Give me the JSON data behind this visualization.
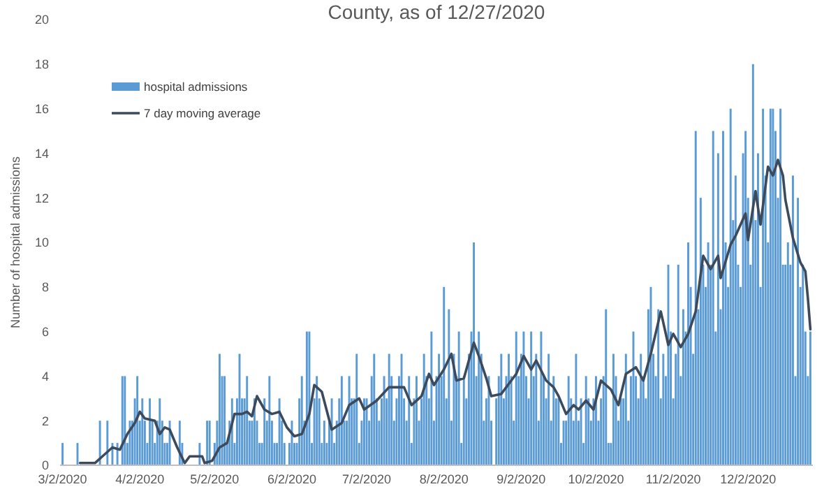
{
  "chart_data": {
    "type": "bar",
    "title": "County, as of 12/27/2020",
    "ylabel": "Number of hospital admissions",
    "xlim": [
      "2020-03-01",
      "2020-12-28"
    ],
    "xticks": [
      {
        "value": "2020-03-02",
        "label": "3/2/2020"
      },
      {
        "value": "2020-04-02",
        "label": "4/2/2020"
      },
      {
        "value": "2020-05-02",
        "label": "5/2/2020"
      },
      {
        "value": "2020-06-02",
        "label": "6/2/2020"
      },
      {
        "value": "2020-07-02",
        "label": "7/2/2020"
      },
      {
        "value": "2020-08-02",
        "label": "8/2/2020"
      },
      {
        "value": "2020-09-02",
        "label": "9/2/2020"
      },
      {
        "value": "2020-10-02",
        "label": "10/2/2020"
      },
      {
        "value": "2020-11-02",
        "label": "11/2/2020"
      },
      {
        "value": "2020-12-02",
        "label": "12/2/2020"
      }
    ],
    "ylim": [
      0,
      20
    ],
    "yticks": [
      0,
      2,
      4,
      6,
      8,
      10,
      12,
      14,
      16,
      18,
      20
    ],
    "grid": false,
    "legend": "top left",
    "x": [
      "2020-03-02",
      "2020-03-03",
      "2020-03-04",
      "2020-03-05",
      "2020-03-06",
      "2020-03-07",
      "2020-03-08",
      "2020-03-09",
      "2020-03-10",
      "2020-03-11",
      "2020-03-12",
      "2020-03-13",
      "2020-03-14",
      "2020-03-15",
      "2020-03-16",
      "2020-03-17",
      "2020-03-18",
      "2020-03-19",
      "2020-03-20",
      "2020-03-21",
      "2020-03-22",
      "2020-03-23",
      "2020-03-24",
      "2020-03-25",
      "2020-03-26",
      "2020-03-27",
      "2020-03-28",
      "2020-03-29",
      "2020-03-30",
      "2020-03-31",
      "2020-04-01",
      "2020-04-02",
      "2020-04-03",
      "2020-04-04",
      "2020-04-05",
      "2020-04-06",
      "2020-04-07",
      "2020-04-08",
      "2020-04-09",
      "2020-04-10",
      "2020-04-11",
      "2020-04-12",
      "2020-04-13",
      "2020-04-14",
      "2020-04-15",
      "2020-04-16",
      "2020-04-17",
      "2020-04-18",
      "2020-04-19",
      "2020-04-20",
      "2020-04-21",
      "2020-04-22",
      "2020-04-23",
      "2020-04-24",
      "2020-04-25",
      "2020-04-26",
      "2020-04-27",
      "2020-04-28",
      "2020-04-29",
      "2020-04-30",
      "2020-05-01",
      "2020-05-02",
      "2020-05-03",
      "2020-05-04",
      "2020-05-05",
      "2020-05-06",
      "2020-05-07",
      "2020-05-08",
      "2020-05-09",
      "2020-05-10",
      "2020-05-11",
      "2020-05-12",
      "2020-05-13",
      "2020-05-14",
      "2020-05-15",
      "2020-05-16",
      "2020-05-17",
      "2020-05-18",
      "2020-05-19",
      "2020-05-20",
      "2020-05-21",
      "2020-05-22",
      "2020-05-23",
      "2020-05-24",
      "2020-05-25",
      "2020-05-26",
      "2020-05-27",
      "2020-05-28",
      "2020-05-29",
      "2020-05-30",
      "2020-05-31",
      "2020-06-01",
      "2020-06-02",
      "2020-06-03",
      "2020-06-04",
      "2020-06-05",
      "2020-06-06",
      "2020-06-07",
      "2020-06-08",
      "2020-06-09",
      "2020-06-10",
      "2020-06-11",
      "2020-06-12",
      "2020-06-13",
      "2020-06-14",
      "2020-06-15",
      "2020-06-16",
      "2020-06-17",
      "2020-06-18",
      "2020-06-19",
      "2020-06-20",
      "2020-06-21",
      "2020-06-22",
      "2020-06-23",
      "2020-06-24",
      "2020-06-25",
      "2020-06-26",
      "2020-06-27",
      "2020-06-28",
      "2020-06-29",
      "2020-06-30",
      "2020-07-01",
      "2020-07-02",
      "2020-07-03",
      "2020-07-04",
      "2020-07-05",
      "2020-07-06",
      "2020-07-07",
      "2020-07-08",
      "2020-07-09",
      "2020-07-10",
      "2020-07-11",
      "2020-07-12",
      "2020-07-13",
      "2020-07-14",
      "2020-07-15",
      "2020-07-16",
      "2020-07-17",
      "2020-07-18",
      "2020-07-19",
      "2020-07-20",
      "2020-07-21",
      "2020-07-22",
      "2020-07-23",
      "2020-07-24",
      "2020-07-25",
      "2020-07-26",
      "2020-07-27",
      "2020-07-28",
      "2020-07-29",
      "2020-07-30",
      "2020-07-31",
      "2020-08-01",
      "2020-08-02",
      "2020-08-03",
      "2020-08-04",
      "2020-08-05",
      "2020-08-06",
      "2020-08-07",
      "2020-08-08",
      "2020-08-09",
      "2020-08-10",
      "2020-08-11",
      "2020-08-12",
      "2020-08-13",
      "2020-08-14",
      "2020-08-15",
      "2020-08-16",
      "2020-08-17",
      "2020-08-18",
      "2020-08-19",
      "2020-08-20",
      "2020-08-21",
      "2020-08-22",
      "2020-08-23",
      "2020-08-24",
      "2020-08-25",
      "2020-08-26",
      "2020-08-27",
      "2020-08-28",
      "2020-08-29",
      "2020-08-30",
      "2020-08-31",
      "2020-09-01",
      "2020-09-02",
      "2020-09-03",
      "2020-09-04",
      "2020-09-05",
      "2020-09-06",
      "2020-09-07",
      "2020-09-08",
      "2020-09-09",
      "2020-09-10",
      "2020-09-11",
      "2020-09-12",
      "2020-09-13",
      "2020-09-14",
      "2020-09-15",
      "2020-09-16",
      "2020-09-17",
      "2020-09-18",
      "2020-09-19",
      "2020-09-20",
      "2020-09-21",
      "2020-09-22",
      "2020-09-23",
      "2020-09-24",
      "2020-09-25",
      "2020-09-26",
      "2020-09-27",
      "2020-09-28",
      "2020-09-29",
      "2020-09-30",
      "2020-10-01",
      "2020-10-02",
      "2020-10-03",
      "2020-10-04",
      "2020-10-05",
      "2020-10-06",
      "2020-10-07",
      "2020-10-08",
      "2020-10-09",
      "2020-10-10",
      "2020-10-11",
      "2020-10-12",
      "2020-10-13",
      "2020-10-14",
      "2020-10-15",
      "2020-10-16",
      "2020-10-17",
      "2020-10-18",
      "2020-10-19",
      "2020-10-20",
      "2020-10-21",
      "2020-10-22",
      "2020-10-23",
      "2020-10-24",
      "2020-10-25",
      "2020-10-26",
      "2020-10-27",
      "2020-10-28",
      "2020-10-29",
      "2020-10-30",
      "2020-10-31",
      "2020-11-01",
      "2020-11-02",
      "2020-11-03",
      "2020-11-04",
      "2020-11-05",
      "2020-11-06",
      "2020-11-07",
      "2020-11-08",
      "2020-11-09",
      "2020-11-10",
      "2020-11-11",
      "2020-11-12",
      "2020-11-13",
      "2020-11-14",
      "2020-11-15",
      "2020-11-16",
      "2020-11-17",
      "2020-11-18",
      "2020-11-19",
      "2020-11-20",
      "2020-11-21",
      "2020-11-22",
      "2020-11-23",
      "2020-11-24",
      "2020-11-25",
      "2020-11-26",
      "2020-11-27",
      "2020-11-28",
      "2020-11-29",
      "2020-11-30",
      "2020-12-01",
      "2020-12-02",
      "2020-12-03",
      "2020-12-04",
      "2020-12-05",
      "2020-12-06",
      "2020-12-07",
      "2020-12-08",
      "2020-12-09",
      "2020-12-10",
      "2020-12-11",
      "2020-12-12",
      "2020-12-13",
      "2020-12-14",
      "2020-12-15",
      "2020-12-16",
      "2020-12-17",
      "2020-12-18",
      "2020-12-19",
      "2020-12-20",
      "2020-12-21",
      "2020-12-22",
      "2020-12-23",
      "2020-12-24",
      "2020-12-25",
      "2020-12-26",
      "2020-12-27"
    ],
    "series": [
      {
        "name": "hospital admissions",
        "color": "#5b9bd5",
        "values": [
          1,
          0,
          0,
          0,
          0,
          0,
          1,
          0,
          0,
          0,
          0,
          0,
          0,
          0,
          0,
          2,
          0,
          0,
          2,
          0,
          1,
          0,
          1,
          0,
          4,
          4,
          1,
          2,
          2,
          3,
          4,
          2,
          3,
          2,
          1,
          3,
          2,
          1,
          2,
          3,
          2,
          1,
          1,
          2,
          0,
          0,
          0,
          2,
          1,
          0,
          0,
          0,
          0,
          0,
          0,
          1,
          0,
          0,
          2,
          2,
          0,
          1,
          2,
          5,
          4,
          4,
          1,
          2,
          3,
          1,
          3,
          5,
          3,
          3,
          4,
          2,
          2,
          3,
          2,
          1,
          1,
          3,
          2,
          4,
          2,
          1,
          1,
          3,
          2,
          1,
          0,
          1,
          2,
          1,
          1,
          3,
          4,
          2,
          6,
          6,
          1,
          3,
          4,
          3,
          1,
          2,
          1,
          2,
          3,
          1,
          2,
          3,
          4,
          2,
          2,
          4,
          3,
          3,
          5,
          1,
          2,
          3,
          3,
          2,
          4,
          5,
          3,
          2,
          3,
          4,
          3,
          5,
          4,
          2,
          3,
          4,
          5,
          3,
          2,
          4,
          1,
          3,
          4,
          2,
          3,
          5,
          4,
          3,
          6,
          2,
          4,
          5,
          4,
          8,
          3,
          7,
          2,
          5,
          4,
          6,
          1,
          4,
          3,
          5,
          6,
          10,
          4,
          6,
          5,
          2,
          3,
          4,
          2,
          0,
          3,
          4,
          5,
          3,
          4,
          5,
          4,
          2,
          6,
          4,
          5,
          6,
          4,
          3,
          6,
          4,
          5,
          2,
          6,
          4,
          3,
          5,
          2,
          4,
          3,
          3,
          1,
          2,
          2,
          4,
          3,
          2,
          5,
          2,
          3,
          1,
          4,
          3,
          2,
          3,
          4,
          2,
          3,
          4,
          7,
          1,
          1,
          5,
          4,
          2,
          3,
          3,
          5,
          2,
          4,
          6,
          4,
          3,
          5,
          4,
          3,
          7,
          8,
          5,
          4,
          7,
          3,
          5,
          4,
          9,
          6,
          3,
          5,
          9,
          4,
          7,
          6,
          10,
          8,
          5,
          15,
          7,
          12,
          9,
          8,
          10,
          9,
          15,
          6,
          14,
          7,
          15,
          10,
          8,
          16,
          11,
          13,
          9,
          8,
          14,
          15,
          12,
          9,
          18,
          11,
          14,
          8,
          16,
          13,
          10,
          16,
          16,
          15,
          12,
          16,
          9,
          9,
          10,
          9,
          13,
          4,
          12,
          8,
          9,
          6,
          4,
          6
        ]
      },
      {
        "name": "7 day moving average",
        "type": "line",
        "color": "#3c4a5c",
        "x": [
          "2020-03-09",
          "2020-03-15",
          "2020-03-18",
          "2020-03-22",
          "2020-03-25",
          "2020-03-28",
          "2020-03-31",
          "2020-04-02",
          "2020-04-04",
          "2020-04-08",
          "2020-04-10",
          "2020-04-12",
          "2020-04-14",
          "2020-04-17",
          "2020-04-20",
          "2020-04-22",
          "2020-04-27",
          "2020-04-28",
          "2020-05-01",
          "2020-05-04",
          "2020-05-07",
          "2020-05-10",
          "2020-05-13",
          "2020-05-15",
          "2020-05-17",
          "2020-05-19",
          "2020-05-22",
          "2020-05-25",
          "2020-05-28",
          "2020-05-31",
          "2020-06-03",
          "2020-06-06",
          "2020-06-09",
          "2020-06-11",
          "2020-06-14",
          "2020-06-18",
          "2020-06-22",
          "2020-06-25",
          "2020-06-29",
          "2020-07-01",
          "2020-07-06",
          "2020-07-11",
          "2020-07-17",
          "2020-07-20",
          "2020-07-24",
          "2020-07-27",
          "2020-07-29",
          "2020-08-02",
          "2020-08-05",
          "2020-08-07",
          "2020-08-10",
          "2020-08-14",
          "2020-08-16",
          "2020-08-19",
          "2020-08-21",
          "2020-08-25",
          "2020-08-31",
          "2020-09-03",
          "2020-09-06",
          "2020-09-08",
          "2020-09-12",
          "2020-09-15",
          "2020-09-17",
          "2020-09-20",
          "2020-09-23",
          "2020-09-25",
          "2020-09-28",
          "2020-10-01",
          "2020-10-04",
          "2020-10-08",
          "2020-10-11",
          "2020-10-14",
          "2020-10-18",
          "2020-10-21",
          "2020-10-24",
          "2020-10-28",
          "2020-10-31",
          "2020-11-02",
          "2020-11-05",
          "2020-11-08",
          "2020-11-11",
          "2020-11-14",
          "2020-11-17",
          "2020-11-20",
          "2020-11-21",
          "2020-11-25",
          "2020-11-27",
          "2020-12-01",
          "2020-12-02",
          "2020-12-05",
          "2020-12-07",
          "2020-12-10",
          "2020-12-12",
          "2020-12-14",
          "2020-12-16",
          "2020-12-17",
          "2020-12-20",
          "2020-12-23",
          "2020-12-25",
          "2020-12-26",
          "2020-12-27"
        ],
        "values": [
          0.1,
          0.1,
          0.4,
          0.8,
          0.7,
          1.4,
          1.9,
          2.4,
          2.1,
          2.0,
          1.4,
          1.7,
          1.6,
          0.8,
          0.1,
          0.4,
          0.4,
          0.1,
          0.2,
          0.8,
          1.0,
          2.3,
          2.3,
          2.4,
          2.2,
          3.1,
          2.5,
          2.3,
          2.4,
          1.7,
          1.3,
          1.4,
          2.3,
          3.6,
          3.3,
          1.6,
          1.9,
          2.7,
          3.0,
          2.5,
          2.9,
          3.5,
          3.5,
          2.7,
          3.1,
          4.1,
          3.6,
          4.3,
          5.0,
          3.8,
          3.9,
          5.5,
          4.9,
          3.9,
          3.1,
          3.2,
          4.1,
          4.9,
          4.3,
          4.7,
          3.8,
          3.5,
          3.1,
          2.3,
          2.7,
          2.5,
          2.9,
          2.5,
          3.8,
          3.4,
          2.7,
          4.1,
          4.4,
          3.8,
          5.0,
          6.9,
          5.4,
          5.9,
          5.3,
          5.9,
          6.9,
          9.4,
          8.8,
          9.4,
          8.4,
          9.9,
          10.3,
          11.3,
          10.1,
          12.3,
          10.8,
          13.4,
          13.0,
          13.7,
          13.0,
          11.9,
          10.2,
          9.1,
          8.7,
          7.5,
          6.1
        ]
      }
    ]
  }
}
